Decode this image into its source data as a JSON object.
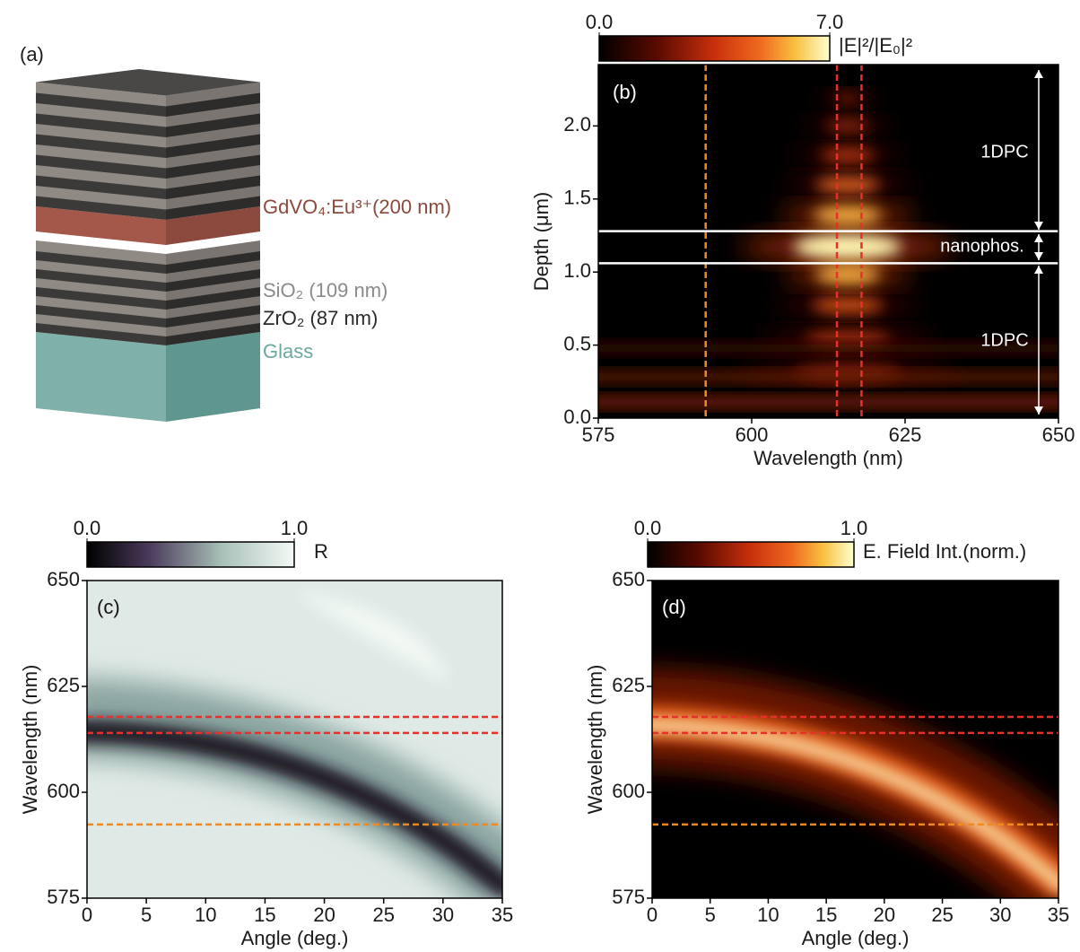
{
  "chart_data": [
    {
      "type": "illustration",
      "panel_label": "(a)",
      "labels": [
        "GdVO₄:Eu³⁺(200 nm)",
        "SiO₂ (109 nm)",
        "ZrO₂ (87 nm)",
        "Glass"
      ],
      "label_colors": [
        "#8a4a3c",
        "#8a8a8a",
        "#2a2a2a",
        "#6aa8a0"
      ]
    },
    {
      "type": "heatmap",
      "panel_label": "(b)",
      "xlabel": "Wavelength (nm)",
      "ylabel": "Depth (μm)",
      "xlim": [
        575,
        650
      ],
      "xticks": [
        575,
        600,
        625,
        650
      ],
      "ylim": [
        0,
        2.42
      ],
      "yticks": [
        {
          "value": 0,
          "label": "0.0"
        },
        0.5,
        {
          "value": 1,
          "label": "1.0"
        },
        1.5,
        {
          "value": 2,
          "label": "2.0"
        }
      ],
      "colorbar": {
        "label": "|E|²/|E₀|²",
        "lim": [
          0,
          7
        ],
        "ticks": [
          {
            "value": 0,
            "label": "0.0"
          },
          {
            "value": 7,
            "label": "7.0"
          }
        ]
      },
      "vlines": [
        {
          "value": 592.5,
          "color": "#f08a20"
        },
        {
          "value": 613.9,
          "color": "#e8302a"
        },
        {
          "value": 617.9,
          "color": "#e8302a"
        }
      ],
      "hlines": [
        {
          "value": 1.06,
          "color": "#ffffff"
        },
        {
          "value": 1.28,
          "color": "#ffffff"
        }
      ],
      "annotations": [
        "1DPC",
        "nanophos.",
        "1DPC"
      ]
    },
    {
      "type": "heatmap",
      "panel_label": "(c)",
      "xlabel": "Angle (deg.)",
      "ylabel": "Wavelength (nm)",
      "xlim": [
        0,
        35
      ],
      "xticks": [
        0,
        5,
        10,
        15,
        20,
        25,
        30,
        35
      ],
      "ylim": [
        575,
        650
      ],
      "yticks": [
        575,
        600,
        625,
        650
      ],
      "colorbar": {
        "label": "R",
        "lim": [
          0,
          1
        ],
        "ticks": [
          {
            "value": 0,
            "label": "0.0"
          },
          {
            "value": 1,
            "label": "1.0"
          }
        ]
      },
      "hlines": [
        {
          "value": 617.8,
          "color": "#e8302a"
        },
        {
          "value": 614,
          "color": "#e8302a"
        },
        {
          "value": 592.4,
          "color": "#f08a20"
        }
      ]
    },
    {
      "type": "heatmap",
      "panel_label": "(d)",
      "xlabel": "Angle (deg.)",
      "ylabel": "Wavelength (nm)",
      "xlim": [
        0,
        35
      ],
      "xticks": [
        0,
        5,
        10,
        15,
        20,
        25,
        30,
        35
      ],
      "ylim": [
        575,
        650
      ],
      "yticks": [
        575,
        600,
        625,
        650
      ],
      "colorbar": {
        "label": "E. Field Int.(norm.)",
        "lim": [
          0,
          1
        ],
        "ticks": [
          {
            "value": 0,
            "label": "0.0"
          },
          {
            "value": 1,
            "label": "1.0"
          }
        ]
      },
      "hlines": [
        {
          "value": 617.8,
          "color": "#e8302a"
        },
        {
          "value": 614,
          "color": "#e8302a"
        },
        {
          "value": 592.4,
          "color": "#f08a20"
        }
      ]
    }
  ]
}
